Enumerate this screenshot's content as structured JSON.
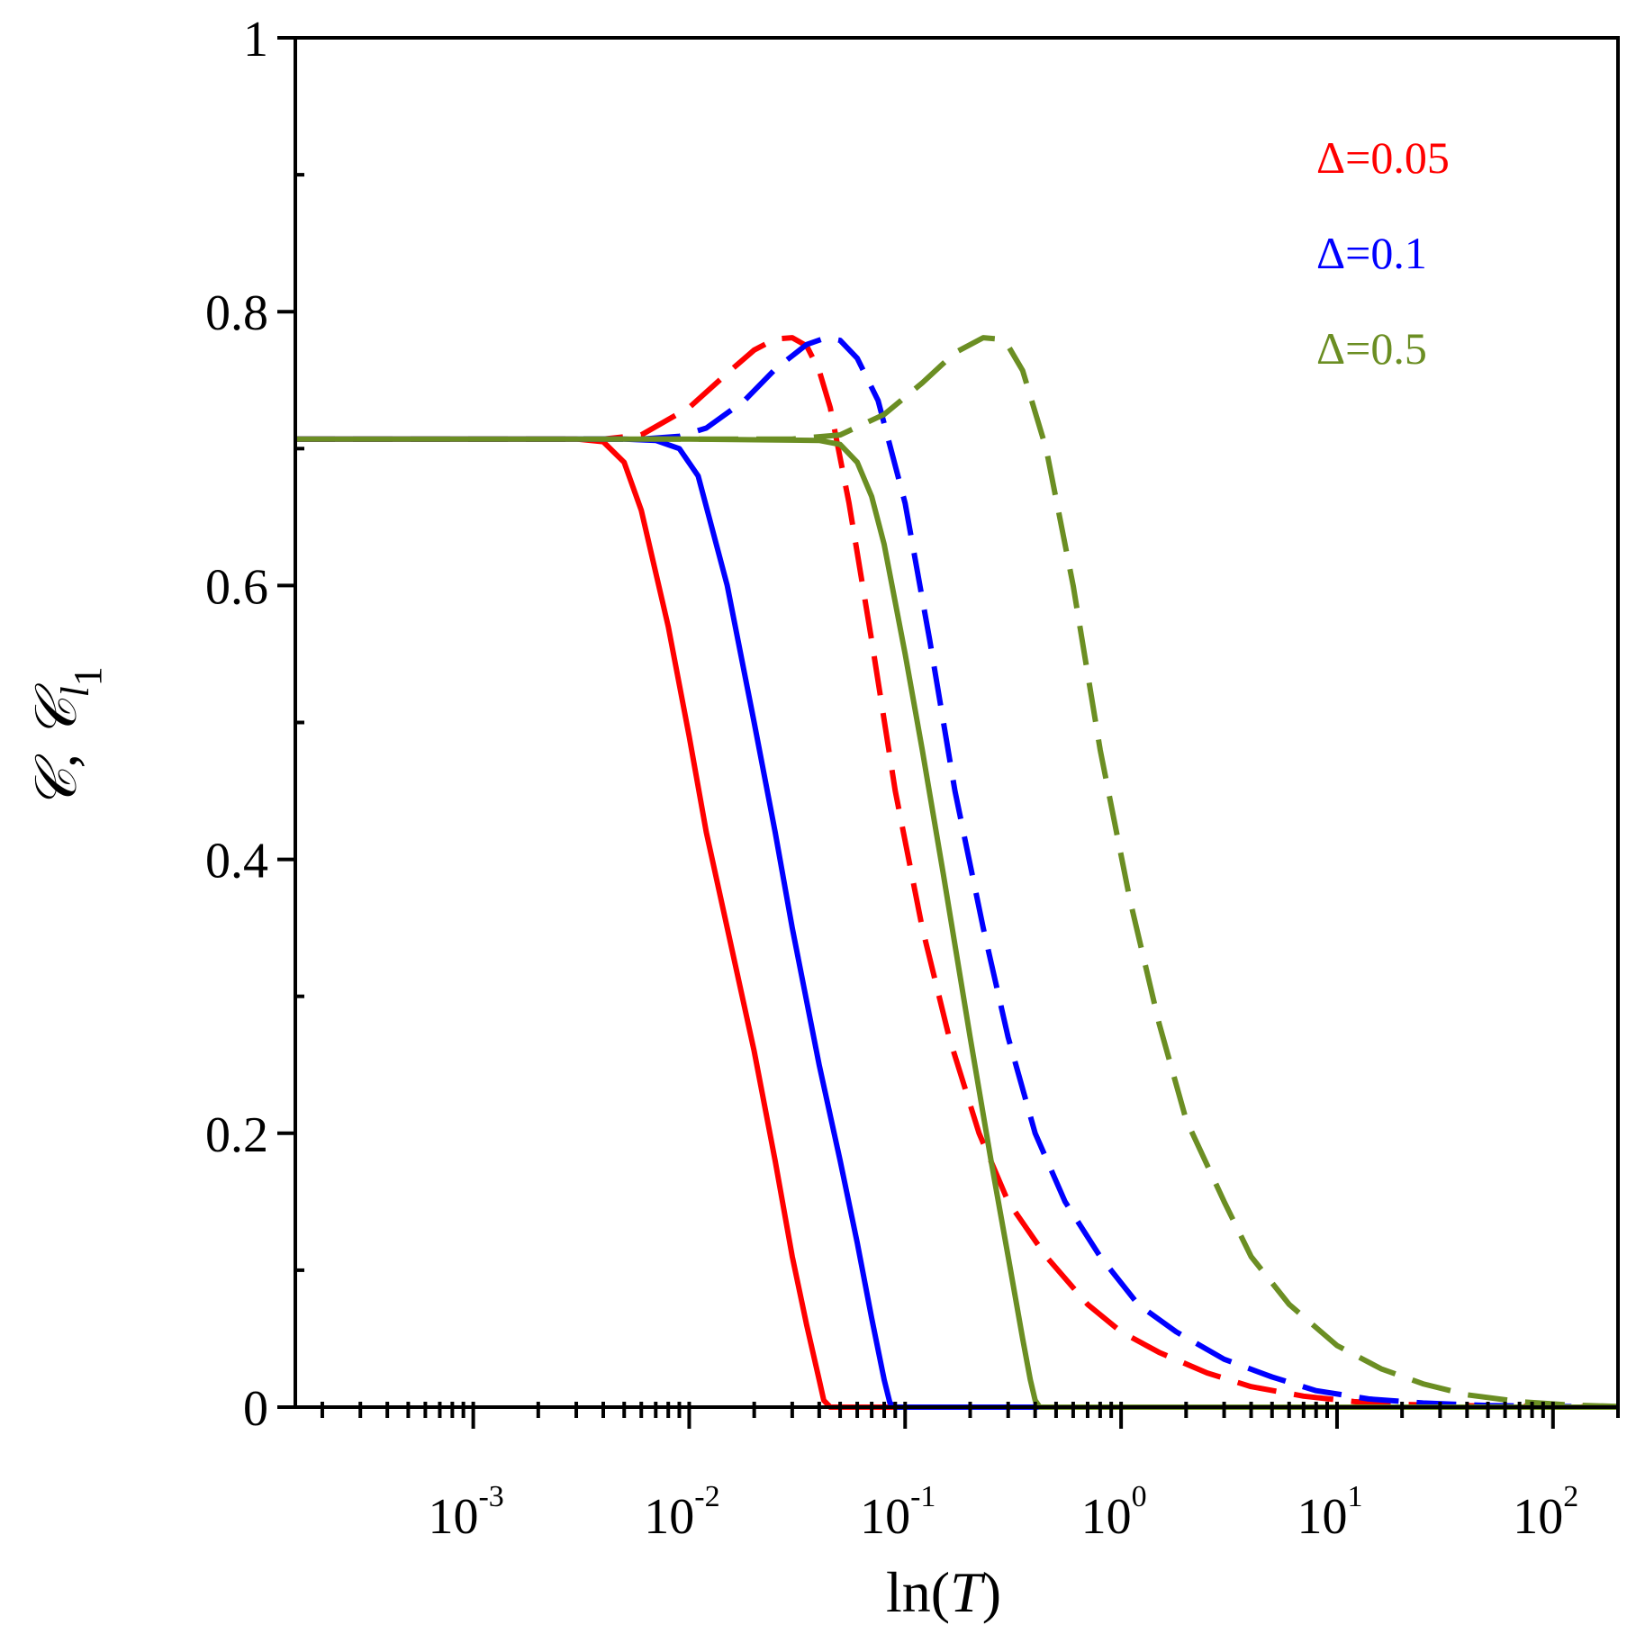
{
  "chart_data": {
    "type": "line",
    "title": "",
    "xlabel": {
      "prefix": "ln",
      "open": "(",
      "var": "T",
      "close": ")"
    },
    "ylabel": {
      "main": "𝒞, 𝒞",
      "sub1": "l",
      "sub2": "1"
    },
    "xscale": "log",
    "xlim": [
      0.00015,
      200
    ],
    "ylim": [
      0,
      1
    ],
    "grid": false,
    "legend_position": "top-right",
    "xticks": [
      {
        "value": 0.001,
        "base": "10",
        "exp": "-3"
      },
      {
        "value": 0.01,
        "base": "10",
        "exp": "-2"
      },
      {
        "value": 0.1,
        "base": "10",
        "exp": "-1"
      },
      {
        "value": 1,
        "base": "10",
        "exp": "0"
      },
      {
        "value": 10,
        "base": "10",
        "exp": "1"
      },
      {
        "value": 100,
        "base": "10",
        "exp": "2"
      }
    ],
    "yticks": [
      {
        "value": 0,
        "label": "0"
      },
      {
        "value": 0.2,
        "label": "0.2"
      },
      {
        "value": 0.4,
        "label": "0.4"
      },
      {
        "value": 0.6,
        "label": "0.6"
      },
      {
        "value": 0.8,
        "label": "0.8"
      },
      {
        "value": 1,
        "label": "1"
      }
    ],
    "legend": [
      {
        "label": "Δ=0.05",
        "color": "#ff0000"
      },
      {
        "label": "Δ=0.1",
        "color": "#0000ff"
      },
      {
        "label": "Δ=0.5",
        "color": "#6b8e23"
      }
    ],
    "series": [
      {
        "color": "#ff0000",
        "style": "dashed",
        "x": [
          0.00015,
          0.001,
          0.004,
          0.006,
          0.01,
          0.015,
          0.02,
          0.025,
          0.03,
          0.035,
          0.04,
          0.045,
          0.055,
          0.07,
          0.09,
          0.12,
          0.16,
          0.22,
          0.3,
          0.45,
          0.7,
          1.0,
          1.5,
          2.5,
          4,
          7,
          12,
          20,
          40,
          100,
          200
        ],
        "y": [
          0.707,
          0.707,
          0.707,
          0.71,
          0.73,
          0.755,
          0.772,
          0.78,
          0.781,
          0.775,
          0.757,
          0.73,
          0.66,
          0.56,
          0.45,
          0.35,
          0.27,
          0.2,
          0.15,
          0.11,
          0.075,
          0.055,
          0.04,
          0.025,
          0.015,
          0.008,
          0.004,
          0.002,
          0.001,
          0.0003,
          0.0001
        ]
      },
      {
        "color": "#0000ff",
        "style": "dashed",
        "x": [
          0.00015,
          0.001,
          0.006,
          0.009,
          0.012,
          0.018,
          0.025,
          0.035,
          0.043,
          0.05,
          0.06,
          0.075,
          0.1,
          0.13,
          0.17,
          0.23,
          0.3,
          0.4,
          0.55,
          0.8,
          1.2,
          1.8,
          3,
          5,
          8,
          14,
          25,
          50,
          100,
          200
        ],
        "y": [
          0.707,
          0.707,
          0.707,
          0.709,
          0.715,
          0.735,
          0.758,
          0.776,
          0.781,
          0.779,
          0.766,
          0.735,
          0.66,
          0.56,
          0.45,
          0.35,
          0.27,
          0.2,
          0.15,
          0.11,
          0.075,
          0.055,
          0.035,
          0.022,
          0.012,
          0.006,
          0.003,
          0.0012,
          0.0005,
          0.0002
        ]
      },
      {
        "color": "#6b8e23",
        "style": "dashed",
        "x": [
          0.00015,
          0.001,
          0.01,
          0.03,
          0.05,
          0.08,
          0.12,
          0.17,
          0.23,
          0.27,
          0.3,
          0.35,
          0.45,
          0.6,
          0.8,
          1.1,
          1.5,
          2,
          3,
          4,
          6,
          10,
          16,
          25,
          40,
          70,
          120,
          200
        ],
        "y": [
          0.707,
          0.707,
          0.707,
          0.707,
          0.71,
          0.725,
          0.748,
          0.77,
          0.781,
          0.78,
          0.775,
          0.757,
          0.7,
          0.6,
          0.48,
          0.37,
          0.28,
          0.21,
          0.15,
          0.11,
          0.075,
          0.045,
          0.028,
          0.017,
          0.009,
          0.004,
          0.0015,
          0.0005
        ]
      },
      {
        "color": "#ff0000",
        "style": "solid",
        "x": [
          0.00015,
          0.001,
          0.003,
          0.004,
          0.005,
          0.006,
          0.008,
          0.01,
          0.012,
          0.015,
          0.02,
          0.025,
          0.03,
          0.035,
          0.04,
          0.042,
          0.045,
          0.05,
          0.1,
          1,
          200
        ],
        "y": [
          0.707,
          0.707,
          0.707,
          0.705,
          0.69,
          0.655,
          0.57,
          0.49,
          0.42,
          0.35,
          0.26,
          0.18,
          0.11,
          0.06,
          0.02,
          0.005,
          0.0,
          0.0,
          0.0,
          0.0,
          0.0
        ]
      },
      {
        "color": "#0000ff",
        "style": "solid",
        "x": [
          0.00015,
          0.001,
          0.005,
          0.007,
          0.009,
          0.011,
          0.015,
          0.02,
          0.025,
          0.03,
          0.04,
          0.05,
          0.06,
          0.07,
          0.08,
          0.085,
          0.09,
          0.1,
          1,
          200
        ],
        "y": [
          0.707,
          0.707,
          0.707,
          0.706,
          0.7,
          0.68,
          0.6,
          0.5,
          0.42,
          0.35,
          0.25,
          0.18,
          0.12,
          0.065,
          0.02,
          0.003,
          0.0,
          0.0,
          0.0,
          0.0
        ]
      },
      {
        "color": "#6b8e23",
        "style": "solid",
        "x": [
          0.00015,
          0.001,
          0.01,
          0.04,
          0.05,
          0.06,
          0.07,
          0.08,
          0.1,
          0.12,
          0.15,
          0.2,
          0.25,
          0.3,
          0.35,
          0.38,
          0.4,
          0.42,
          1,
          200
        ],
        "y": [
          0.707,
          0.707,
          0.707,
          0.706,
          0.703,
          0.69,
          0.665,
          0.63,
          0.55,
          0.48,
          0.39,
          0.27,
          0.18,
          0.11,
          0.05,
          0.02,
          0.005,
          0.0,
          0.0,
          0.0
        ]
      }
    ]
  }
}
